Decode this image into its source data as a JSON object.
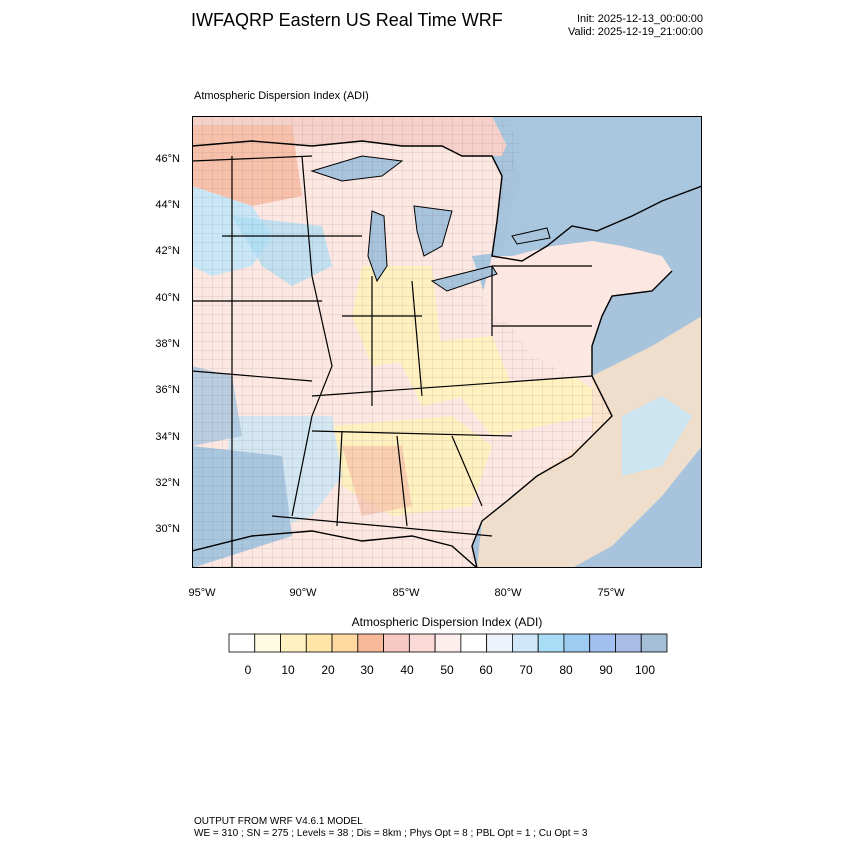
{
  "header": {
    "title": "IWFAQRP Eastern US Real Time WRF",
    "init": "Init: 2025-12-13_00:00:00",
    "valid": "Valid: 2025-12-19_21:00:00"
  },
  "plot": {
    "label": "Atmospheric Dispersion Index   (ADI)",
    "lat_labels": [
      "46°N",
      "44°N",
      "42°N",
      "40°N",
      "38°N",
      "36°N",
      "34°N",
      "32°N",
      "30°N"
    ],
    "lon_labels": [
      "95°W",
      "90°W",
      "85°W",
      "80°W",
      "75°W"
    ]
  },
  "colorbar": {
    "title": "Atmospheric Dispersion Index  (ADI)",
    "labels": [
      "0",
      "10",
      "20",
      "30",
      "40",
      "50",
      "60",
      "70",
      "80",
      "90",
      "100"
    ],
    "colors": [
      "#ffffff",
      "#fffbe0",
      "#fff2c0",
      "#ffe6a8",
      "#ffd9a0",
      "#f7b999",
      "#f7c9c3",
      "#fbd9d6",
      "#fdeeee",
      "#ffffff",
      "#eef2fb",
      "#cfe7f9",
      "#a9dcf5",
      "#9ecbf0",
      "#a2c0ef",
      "#a7bde6",
      "#a4bed8"
    ]
  },
  "map": {
    "colors": {
      "ocean": "#a8c3dc",
      "land_base": "#fce7e2",
      "warm": "#f7c0aa",
      "yellow": "#fff0c0",
      "blue": "#a9c6df",
      "light_blue": "#c8e6f5",
      "canada": "#f4d0c8"
    }
  },
  "footer": {
    "line1": "OUTPUT FROM WRF V4.6.1 MODEL",
    "line2": "WE = 310 ; SN = 275 ; Levels = 38 ; Dis = 8km ; Phys Opt = 8 ; PBL Opt = 1 ; Cu Opt = 3"
  }
}
